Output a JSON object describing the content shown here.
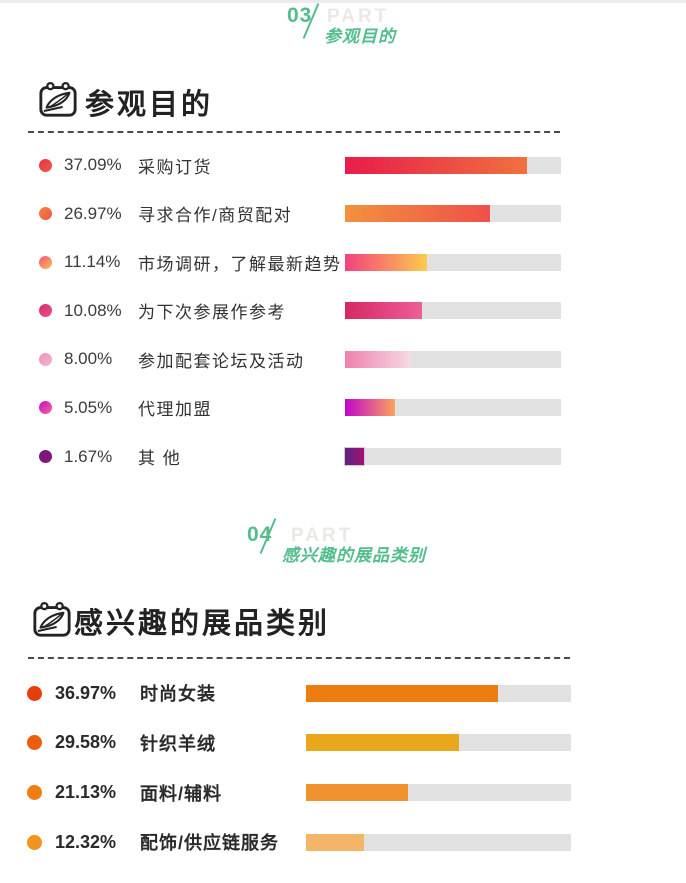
{
  "page": {
    "top_strip_color": "#ECECEC",
    "accent_green": "#53BD8C",
    "track_color": "#E1E1E1",
    "part_word": "PART"
  },
  "sections": [
    {
      "part_number": "03",
      "part_word": "PART",
      "part_subtitle": "参观目的",
      "heading": "参观目的"
    },
    {
      "part_number": "04",
      "part_word": "PART",
      "part_subtitle": "感兴趣的展品类别",
      "heading": "感兴趣的展品类别"
    }
  ],
  "chart_data": [
    {
      "type": "bar",
      "orientation": "horizontal",
      "title": "参观目的",
      "legend_position": "left",
      "grid": false,
      "value_range_shown": [
        0,
        100
      ],
      "categories": [
        "采购订货",
        "寻求合作/商贸配对",
        "市场调研，了解最新趋势",
        "为下次参展作参考",
        "参加配套论坛及活动",
        "代理加盟",
        "其 他"
      ],
      "values": [
        37.09,
        26.97,
        11.14,
        10.08,
        8.0,
        5.05,
        1.67
      ],
      "rows": [
        {
          "pct_text": "37.09%",
          "label": "采购订货",
          "value": 37.09,
          "bar_fill_pct": 84.3,
          "bar_from": "#E81C4B",
          "bar_to": "#F0713F",
          "dot_from": "#E8304A",
          "dot_to": "#EF5A42"
        },
        {
          "pct_text": "26.97%",
          "label": "寻求合作/商贸配对",
          "value": 26.97,
          "bar_fill_pct": 67.0,
          "bar_from": "#F2913E",
          "bar_to": "#EF5049",
          "dot_from": "#F08A3E",
          "dot_to": "#EF5349"
        },
        {
          "pct_text": "11.14%",
          "label": "市场调研，了解最新趋势",
          "value": 11.14,
          "bar_fill_pct": 38.0,
          "bar_from": "#F4417E",
          "bar_to": "#FBCB4E",
          "dot_from": "#F4527D",
          "dot_to": "#FABF52"
        },
        {
          "pct_text": "10.08%",
          "label": "为下次参展作参考",
          "value": 10.08,
          "bar_fill_pct": 35.6,
          "bar_from": "#D72765",
          "bar_to": "#EE5E99",
          "dot_from": "#D82E6B",
          "dot_to": "#E84F8B"
        },
        {
          "pct_text": "8.00%",
          "label": "参加配套论坛及活动",
          "value": 8.0,
          "bar_fill_pct": 30.6,
          "bar_from": "#EE82AE",
          "bar_to": "#F6D9E3",
          "dot_from": "#EE8FB8",
          "dot_to": "#F3B7D2"
        },
        {
          "pct_text": "5.05%",
          "label": "代理加盟",
          "value": 5.05,
          "bar_fill_pct": 23.1,
          "bar_from": "#C306CC",
          "bar_to": "#FAA35D",
          "dot_from": "#CC0CC9",
          "dot_to": "#EF679B"
        },
        {
          "pct_text": "1.67%",
          "label": "其 他",
          "value": 1.67,
          "bar_fill_pct": 8.8,
          "bar_from": "#5A2383",
          "bar_to": "#A31071",
          "dot_from": "#6A1B7E",
          "dot_to": "#8E1478",
          "bar_border": "#DCC1E1"
        }
      ]
    },
    {
      "type": "bar",
      "orientation": "horizontal",
      "title": "感兴趣的展品类别",
      "legend_position": "left",
      "grid": false,
      "value_range_shown": [
        0,
        100
      ],
      "categories": [
        "时尚女装",
        "针织羊绒",
        "面料/辅料",
        "配饰/供应链服务"
      ],
      "values": [
        36.97,
        29.58,
        21.13,
        12.32
      ],
      "rows": [
        {
          "pct_text": "36.97%",
          "label": "时尚女装",
          "value": 36.97,
          "bar_fill_pct": 72.5,
          "bar_from": "#EE7D11",
          "bar_to": "#EE7D11",
          "dot_from": "#E73D0E",
          "dot_to": "#E73D0E"
        },
        {
          "pct_text": "29.58%",
          "label": "针织羊绒",
          "value": 29.58,
          "bar_fill_pct": 57.7,
          "bar_from": "#E9A81B",
          "bar_to": "#E9A81B",
          "dot_from": "#EA5F0D",
          "dot_to": "#EA5F0D"
        },
        {
          "pct_text": "21.13%",
          "label": "面料/辅料",
          "value": 21.13,
          "bar_fill_pct": 38.5,
          "bar_from": "#F0932E",
          "bar_to": "#F0932E",
          "dot_from": "#EE7D14",
          "dot_to": "#EE7D14"
        },
        {
          "pct_text": "12.32%",
          "label": "配饰/供应链服务",
          "value": 12.32,
          "bar_fill_pct": 21.9,
          "bar_from": "#F4B568",
          "bar_to": "#F4B568",
          "dot_from": "#F0941D",
          "dot_to": "#F0941D"
        }
      ]
    }
  ]
}
